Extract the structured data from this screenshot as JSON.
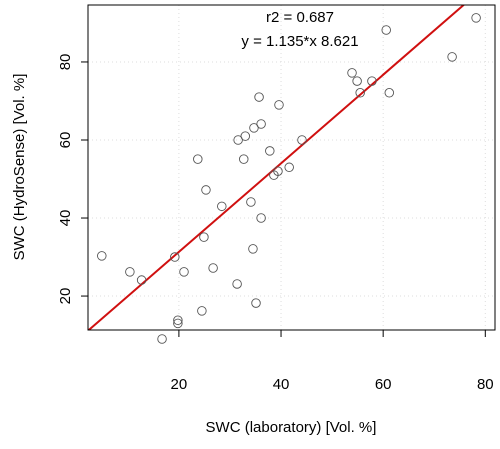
{
  "chart_data": {
    "type": "scatter",
    "x_label": "SWC (laboratory) [Vol. %]",
    "y_label": "SWC (HydroSense) [Vol. %]",
    "annotations": [
      "r2 =  0.687",
      "y = 1.135*x 8.621"
    ],
    "x": [
      4.9,
      10.4,
      12.7,
      16.7,
      19.2,
      19.8,
      19.8,
      21,
      23.7,
      24.5,
      24.9,
      25.3,
      26.7,
      28.4,
      31.4,
      31.6,
      33,
      32.7,
      34.1,
      34.5,
      34.7,
      35.1,
      35.7,
      36.1,
      36.1,
      37.8,
      38.6,
      39.4,
      39.6,
      41.6,
      44.1,
      53.9,
      54.9,
      55.5,
      57.8,
      60.6,
      61.2,
      73.5,
      78.2
    ],
    "values": [
      30.3,
      26.2,
      24.1,
      9,
      30,
      13.8,
      13,
      26.2,
      55.1,
      16.2,
      35.1,
      47.2,
      27.2,
      43,
      23.1,
      60,
      61,
      55.1,
      44.1,
      32.1,
      63.1,
      18.2,
      71,
      64.1,
      40,
      57.2,
      51,
      52,
      69,
      53,
      60,
      77.2,
      75.1,
      72.1,
      75.1,
      88.2,
      72.1,
      81.3,
      91.3
    ],
    "point_color": "#555555",
    "fit_line": {
      "slope": 1.135,
      "intercept": 8.621,
      "color": "#d01010"
    },
    "xlim": [
      2.2,
      81.9
    ],
    "ylim": [
      11.3,
      94.6
    ],
    "xticks": [
      20,
      40,
      60,
      80
    ],
    "yticks": [
      20,
      40,
      60,
      80
    ],
    "grid": true
  }
}
